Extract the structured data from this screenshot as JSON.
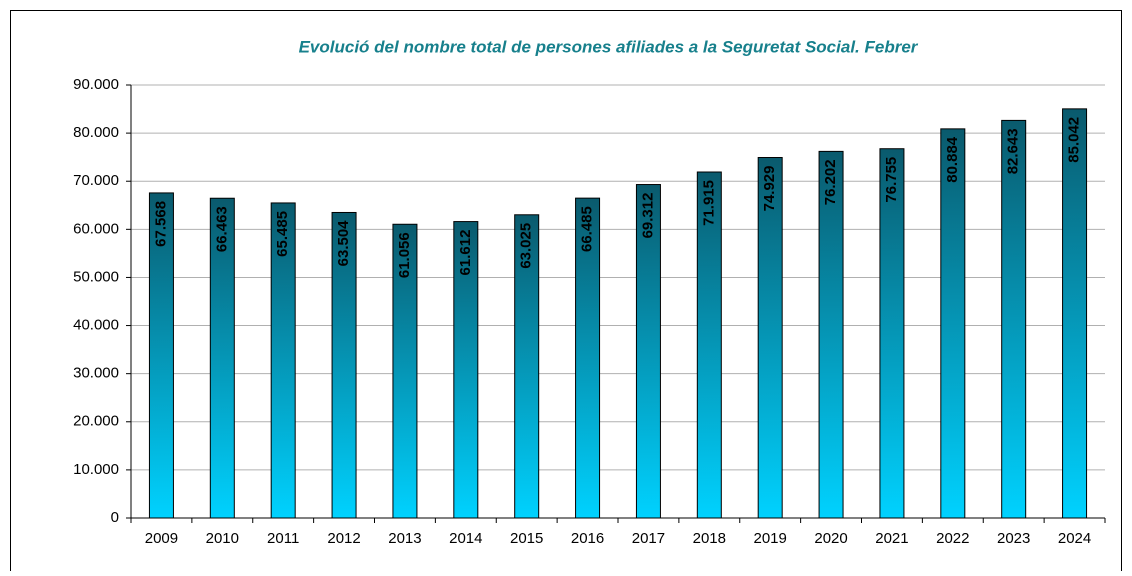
{
  "chart_data": {
    "type": "bar",
    "title": "Evolució del nombre total de persones afiliades a la Seguretat Social. Febrer",
    "categories": [
      "2009",
      "2010",
      "2011",
      "2012",
      "2013",
      "2014",
      "2015",
      "2016",
      "2017",
      "2018",
      "2019",
      "2020",
      "2021",
      "2022",
      "2023",
      "2024"
    ],
    "values": [
      67568,
      66463,
      65485,
      63504,
      61056,
      61612,
      63025,
      66485,
      69312,
      71915,
      74929,
      76202,
      76755,
      80884,
      82643,
      85042
    ],
    "value_labels": [
      "67.568",
      "66.463",
      "65.485",
      "63.504",
      "61.056",
      "61.612",
      "63.025",
      "66.485",
      "69.312",
      "71.915",
      "74.929",
      "76.202",
      "76.755",
      "80.884",
      "82.643",
      "85.042"
    ],
    "color": [
      "#0a5a6d",
      "#00d2ff"
    ],
    "ylim": [
      0,
      90000
    ],
    "yticks": [
      0,
      {
        "value": 10000,
        "label": "10.000"
      },
      {
        "value": 20000,
        "label": "20.000"
      },
      {
        "value": 30000,
        "label": "30.000"
      },
      {
        "value": 40000,
        "label": "40.000"
      },
      {
        "value": 50000,
        "label": "50.000"
      },
      {
        "value": 60000,
        "label": "60.000"
      },
      {
        "value": 70000,
        "label": "70.000"
      },
      {
        "value": 80000,
        "label": "80.000"
      },
      {
        "value": 90000,
        "label": "90.000"
      }
    ],
    "grid": true
  }
}
